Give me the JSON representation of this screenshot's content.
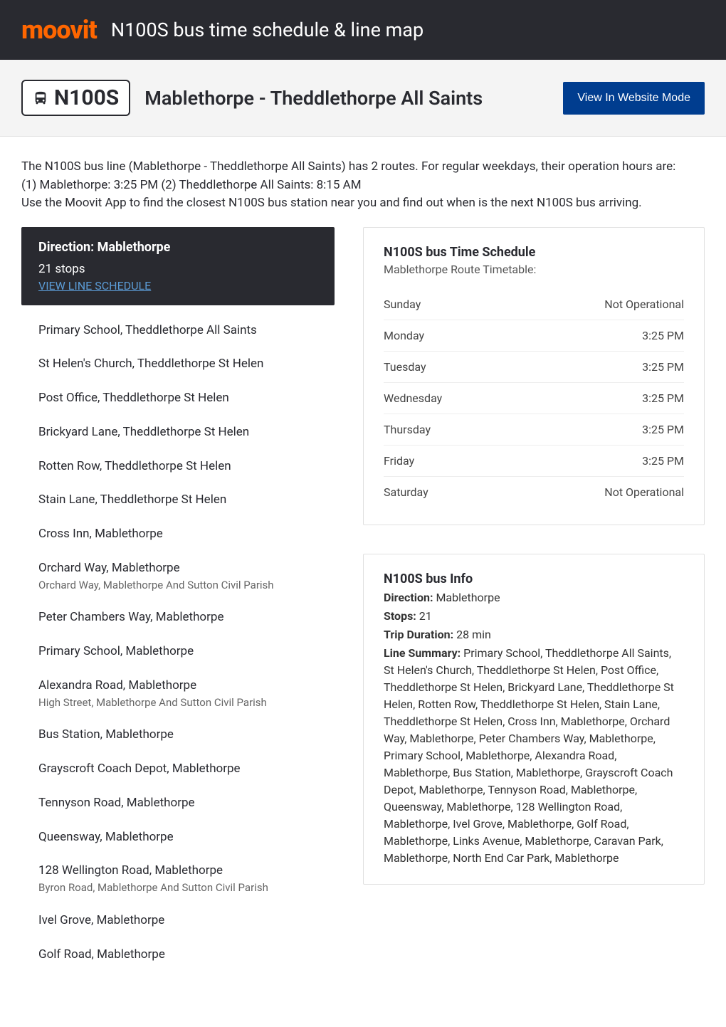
{
  "header": {
    "logo_text": "moovit",
    "title": "N100S bus time schedule & line map"
  },
  "hero": {
    "route_number": "N100S",
    "route_name": "Mablethorpe - Theddlethorpe All Saints",
    "website_button": "View In Website Mode"
  },
  "intro": {
    "line1": "The N100S bus line (Mablethorpe - Theddlethorpe All Saints) has 2 routes. For regular weekdays, their operation hours are:",
    "line2": "(1) Mablethorpe: 3:25 PM (2) Theddlethorpe All Saints: 8:15 AM",
    "line3": "Use the Moovit App to find the closest N100S bus station near you and find out when is the next N100S bus arriving."
  },
  "direction_card": {
    "title": "Direction: Mablethorpe",
    "stops_count": "21 stops",
    "link_text": "VIEW LINE SCHEDULE"
  },
  "stops": [
    {
      "name": "Primary School, Theddlethorpe All Saints",
      "sub": ""
    },
    {
      "name": "St Helen's Church, Theddlethorpe St Helen",
      "sub": ""
    },
    {
      "name": "Post Office, Theddlethorpe St Helen",
      "sub": ""
    },
    {
      "name": "Brickyard Lane, Theddlethorpe St Helen",
      "sub": ""
    },
    {
      "name": "Rotten Row, Theddlethorpe St Helen",
      "sub": ""
    },
    {
      "name": "Stain Lane, Theddlethorpe St Helen",
      "sub": ""
    },
    {
      "name": "Cross Inn, Mablethorpe",
      "sub": ""
    },
    {
      "name": "Orchard Way, Mablethorpe",
      "sub": "Orchard Way, Mablethorpe And Sutton Civil Parish"
    },
    {
      "name": "Peter Chambers Way, Mablethorpe",
      "sub": ""
    },
    {
      "name": "Primary School, Mablethorpe",
      "sub": ""
    },
    {
      "name": "Alexandra Road, Mablethorpe",
      "sub": "High Street, Mablethorpe And Sutton Civil Parish"
    },
    {
      "name": "Bus Station, Mablethorpe",
      "sub": ""
    },
    {
      "name": "Grayscroft Coach Depot, Mablethorpe",
      "sub": ""
    },
    {
      "name": "Tennyson Road, Mablethorpe",
      "sub": ""
    },
    {
      "name": "Queensway, Mablethorpe",
      "sub": ""
    },
    {
      "name": "128 Wellington Road, Mablethorpe",
      "sub": "Byron Road, Mablethorpe And Sutton Civil Parish"
    },
    {
      "name": "Ivel Grove, Mablethorpe",
      "sub": ""
    },
    {
      "name": "Golf Road, Mablethorpe",
      "sub": ""
    }
  ],
  "schedule_card": {
    "title": "N100S bus Time Schedule",
    "subtitle": "Mablethorpe Route Timetable:",
    "rows": [
      {
        "day": "Sunday",
        "time": "Not Operational"
      },
      {
        "day": "Monday",
        "time": "3:25 PM"
      },
      {
        "day": "Tuesday",
        "time": "3:25 PM"
      },
      {
        "day": "Wednesday",
        "time": "3:25 PM"
      },
      {
        "day": "Thursday",
        "time": "3:25 PM"
      },
      {
        "day": "Friday",
        "time": "3:25 PM"
      },
      {
        "day": "Saturday",
        "time": "Not Operational"
      }
    ]
  },
  "info_card": {
    "title": "N100S bus Info",
    "direction_label": "Direction:",
    "direction_value": " Mablethorpe",
    "stops_label": "Stops:",
    "stops_value": " 21",
    "duration_label": "Trip Duration:",
    "duration_value": " 28 min",
    "summary_label": "Line Summary:",
    "summary_value": " Primary School, Theddlethorpe All Saints, St Helen's Church, Theddlethorpe St Helen, Post Office, Theddlethorpe St Helen, Brickyard Lane, Theddlethorpe St Helen, Rotten Row, Theddlethorpe St Helen, Stain Lane, Theddlethorpe St Helen, Cross Inn, Mablethorpe, Orchard Way, Mablethorpe, Peter Chambers Way, Mablethorpe, Primary School, Mablethorpe, Alexandra Road, Mablethorpe, Bus Station, Mablethorpe, Grayscroft Coach Depot, Mablethorpe, Tennyson Road, Mablethorpe, Queensway, Mablethorpe, 128 Wellington Road, Mablethorpe, Ivel Grove, Mablethorpe, Golf Road, Mablethorpe, Links Avenue, Mablethorpe, Caravan Park, Mablethorpe, North End Car Park, Mablethorpe"
  },
  "colors": {
    "header_bg": "#292a30",
    "logo_orange": "#ff6600",
    "button_blue": "#003d8f",
    "link_blue": "#5b9bd5",
    "text_primary": "#292a30",
    "text_secondary": "#666666",
    "border": "#e0e0e0"
  }
}
